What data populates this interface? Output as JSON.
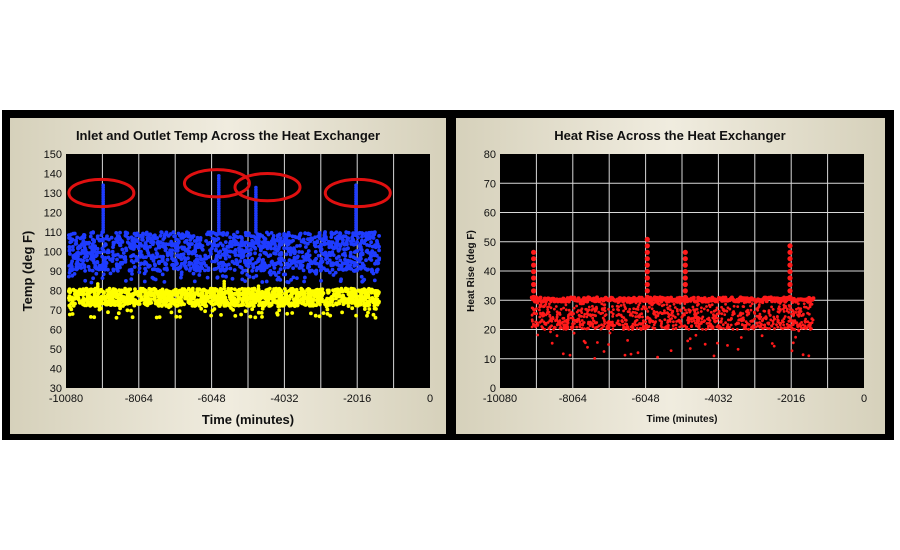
{
  "chart_data": [
    {
      "type": "scatter",
      "title": "Inlet and Outlet Temp Across the Heat Exchanger",
      "xlabel": "Time (minutes)",
      "ylabel": "Temp (deg F)",
      "xlim": [
        -10080,
        0
      ],
      "ylim": [
        30,
        150
      ],
      "xticks": [
        "-10080",
        "-8064",
        "-6048",
        "-4032",
        "-2016",
        "0"
      ],
      "yticks": [
        "30",
        "40",
        "50",
        "60",
        "70",
        "80",
        "90",
        "100",
        "110",
        "120",
        "130",
        "140",
        "150"
      ],
      "grid": "vertical",
      "plot_background": "#000000",
      "series": [
        {
          "color": "#1f3cff",
          "x_range": [
            -10000,
            -1400
          ],
          "band": [
            90,
            110
          ],
          "spikes": [
            {
              "x": -9050,
              "y": 134
            },
            {
              "x": -5850,
              "y": 139
            },
            {
              "x": -4820,
              "y": 133
            },
            {
              "x": -2050,
              "y": 135
            }
          ]
        },
        {
          "color": "#ffff00",
          "x_range": [
            -10000,
            -1400
          ],
          "band": [
            72,
            81
          ],
          "spikes": [
            {
              "x": -9200,
              "y": 84
            },
            {
              "x": -5700,
              "y": 85
            },
            {
              "x": -4750,
              "y": 83
            }
          ]
        }
      ],
      "annotations": [
        {
          "type": "ellipse",
          "color": "#e01010",
          "cx": -9100,
          "cy": 130,
          "rx": 900,
          "ry": 7
        },
        {
          "type": "ellipse",
          "color": "#e01010",
          "cx": -5900,
          "cy": 135,
          "rx": 900,
          "ry": 7
        },
        {
          "type": "ellipse",
          "color": "#e01010",
          "cx": -4500,
          "cy": 133,
          "rx": 900,
          "ry": 7
        },
        {
          "type": "ellipse",
          "color": "#e01010",
          "cx": -2000,
          "cy": 130,
          "rx": 900,
          "ry": 7
        }
      ]
    },
    {
      "type": "scatter",
      "title": "Heat Rise Across the Heat Exchanger",
      "xlabel": "Time (minutes)",
      "ylabel": "Heat Rise (deg F)",
      "xlim": [
        -10080,
        0
      ],
      "ylim": [
        0,
        80
      ],
      "xticks": [
        "-10080",
        "-8064",
        "-6048",
        "-4032",
        "-2016",
        "0"
      ],
      "yticks": [
        "0",
        "10",
        "20",
        "30",
        "40",
        "50",
        "60",
        "70",
        "80"
      ],
      "grid": "both",
      "plot_background": "#000000",
      "series": [
        {
          "color": "#ff1a1a",
          "x_range": [
            -9200,
            -1400
          ],
          "band": [
            20,
            31
          ],
          "spikes": [
            {
              "x": -9150,
              "y": 48
            },
            {
              "x": -6000,
              "y": 52
            },
            {
              "x": -4950,
              "y": 48
            },
            {
              "x": -2050,
              "y": 50
            }
          ]
        }
      ]
    }
  ]
}
